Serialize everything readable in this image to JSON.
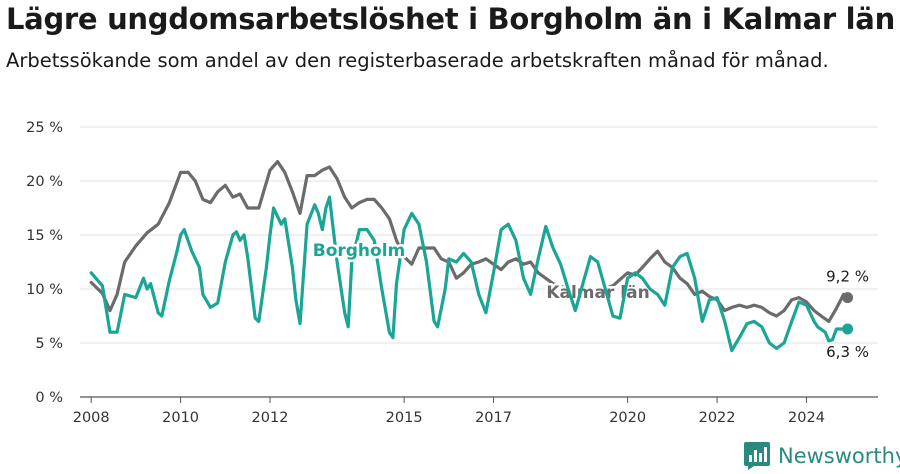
{
  "title": "Lägre ungdomsarbetslöshet i Borgholm än i Kalmar län",
  "subtitle": "Arbetssökande som andel av den registerbaserade arbetskraften månad för månad.",
  "brand": {
    "name": "Newsworthy",
    "logo_icon": "bar-chart-icon",
    "color": "#2a8a80"
  },
  "chart_data": {
    "type": "line",
    "title": "Lägre ungdomsarbetslöshet i Borgholm än i Kalmar län",
    "ylabel": "",
    "xlabel": "",
    "ylim": [
      0,
      25
    ],
    "xlim": [
      2007.75,
      2025.6
    ],
    "y_ticks": [
      0,
      5,
      10,
      15,
      20,
      25
    ],
    "y_tick_labels": [
      "0 %",
      "5 %",
      "10 %",
      "15 %",
      "20 %",
      "25 %"
    ],
    "x_ticks": [
      2008,
      2010,
      2012,
      2015,
      2017,
      2020,
      2022,
      2024
    ],
    "x_tick_labels": [
      "2008",
      "2010",
      "2012",
      "2015",
      "2017",
      "2020",
      "2022",
      "2024"
    ],
    "grid": true,
    "legend": "inline labels",
    "series": [
      {
        "name": "Kalmar län",
        "color": "#6b6b6b",
        "end_label": "9,2 %",
        "end_value": 9.2,
        "points": [
          [
            2008.0,
            10.6
          ],
          [
            2008.25,
            9.6
          ],
          [
            2008.42,
            8.0
          ],
          [
            2008.58,
            9.5
          ],
          [
            2008.75,
            12.5
          ],
          [
            2009.0,
            14.0
          ],
          [
            2009.25,
            15.2
          ],
          [
            2009.5,
            16.0
          ],
          [
            2009.75,
            18.0
          ],
          [
            2010.0,
            20.8
          ],
          [
            2010.17,
            20.8
          ],
          [
            2010.33,
            20.0
          ],
          [
            2010.5,
            18.3
          ],
          [
            2010.67,
            18.0
          ],
          [
            2010.83,
            19.0
          ],
          [
            2011.0,
            19.6
          ],
          [
            2011.17,
            18.5
          ],
          [
            2011.33,
            18.8
          ],
          [
            2011.5,
            17.5
          ],
          [
            2011.75,
            17.5
          ],
          [
            2012.0,
            21.0
          ],
          [
            2012.17,
            21.8
          ],
          [
            2012.33,
            20.8
          ],
          [
            2012.5,
            19.0
          ],
          [
            2012.67,
            17.0
          ],
          [
            2012.83,
            20.5
          ],
          [
            2013.0,
            20.5
          ],
          [
            2013.17,
            21.0
          ],
          [
            2013.33,
            21.3
          ],
          [
            2013.5,
            20.2
          ],
          [
            2013.67,
            18.5
          ],
          [
            2013.83,
            17.5
          ],
          [
            2014.0,
            18.0
          ],
          [
            2014.17,
            18.3
          ],
          [
            2014.33,
            18.3
          ],
          [
            2014.5,
            17.5
          ],
          [
            2014.67,
            16.5
          ],
          [
            2014.83,
            14.5
          ],
          [
            2015.0,
            13.0
          ],
          [
            2015.17,
            12.3
          ],
          [
            2015.33,
            13.8
          ],
          [
            2015.5,
            13.8
          ],
          [
            2015.67,
            13.8
          ],
          [
            2015.83,
            12.8
          ],
          [
            2016.0,
            12.5
          ],
          [
            2016.17,
            11.0
          ],
          [
            2016.33,
            11.5
          ],
          [
            2016.5,
            12.3
          ],
          [
            2016.67,
            12.5
          ],
          [
            2016.83,
            12.8
          ],
          [
            2017.0,
            12.3
          ],
          [
            2017.17,
            11.8
          ],
          [
            2017.33,
            12.5
          ],
          [
            2017.5,
            12.8
          ],
          [
            2017.67,
            12.3
          ],
          [
            2017.83,
            12.5
          ],
          [
            2018.0,
            11.5
          ],
          [
            2018.33,
            10.5
          ],
          [
            2018.67,
            10.0
          ],
          [
            2019.0,
            9.5
          ],
          [
            2019.33,
            9.8
          ],
          [
            2019.67,
            10.3
          ],
          [
            2020.0,
            11.5
          ],
          [
            2020.17,
            11.3
          ],
          [
            2020.33,
            12.0
          ],
          [
            2020.5,
            12.8
          ],
          [
            2020.67,
            13.5
          ],
          [
            2020.83,
            12.5
          ],
          [
            2021.0,
            12.0
          ],
          [
            2021.17,
            11.0
          ],
          [
            2021.33,
            10.5
          ],
          [
            2021.5,
            9.5
          ],
          [
            2021.67,
            9.8
          ],
          [
            2021.83,
            9.3
          ],
          [
            2022.0,
            9.0
          ],
          [
            2022.17,
            8.0
          ],
          [
            2022.33,
            8.3
          ],
          [
            2022.5,
            8.5
          ],
          [
            2022.67,
            8.3
          ],
          [
            2022.83,
            8.5
          ],
          [
            2023.0,
            8.3
          ],
          [
            2023.17,
            7.8
          ],
          [
            2023.33,
            7.5
          ],
          [
            2023.5,
            8.0
          ],
          [
            2023.67,
            9.0
          ],
          [
            2023.83,
            9.2
          ],
          [
            2024.0,
            8.8
          ],
          [
            2024.17,
            8.0
          ],
          [
            2024.33,
            7.5
          ],
          [
            2024.5,
            7.0
          ],
          [
            2024.67,
            8.2
          ],
          [
            2024.83,
            9.5
          ],
          [
            2024.92,
            9.2
          ]
        ]
      },
      {
        "name": "Borgholm",
        "color": "#1aa595",
        "end_label": "6,3 %",
        "end_value": 6.3,
        "points": [
          [
            2008.0,
            11.5
          ],
          [
            2008.25,
            10.3
          ],
          [
            2008.42,
            6.0
          ],
          [
            2008.58,
            6.0
          ],
          [
            2008.75,
            9.5
          ],
          [
            2008.92,
            9.3
          ],
          [
            2009.0,
            9.2
          ],
          [
            2009.17,
            11.0
          ],
          [
            2009.25,
            10.0
          ],
          [
            2009.33,
            10.5
          ],
          [
            2009.5,
            7.8
          ],
          [
            2009.58,
            7.5
          ],
          [
            2009.75,
            10.8
          ],
          [
            2009.92,
            13.5
          ],
          [
            2010.0,
            15.0
          ],
          [
            2010.08,
            15.5
          ],
          [
            2010.25,
            13.5
          ],
          [
            2010.42,
            12.0
          ],
          [
            2010.5,
            9.5
          ],
          [
            2010.67,
            8.3
          ],
          [
            2010.83,
            8.7
          ],
          [
            2011.0,
            12.5
          ],
          [
            2011.17,
            15.0
          ],
          [
            2011.25,
            15.3
          ],
          [
            2011.33,
            14.5
          ],
          [
            2011.42,
            15.0
          ],
          [
            2011.5,
            13.0
          ],
          [
            2011.67,
            7.3
          ],
          [
            2011.75,
            7.0
          ],
          [
            2011.92,
            12.0
          ],
          [
            2012.0,
            15.0
          ],
          [
            2012.08,
            17.5
          ],
          [
            2012.25,
            16.0
          ],
          [
            2012.33,
            16.5
          ],
          [
            2012.5,
            12.0
          ],
          [
            2012.58,
            9.0
          ],
          [
            2012.67,
            6.8
          ],
          [
            2012.83,
            16.0
          ],
          [
            2013.0,
            17.8
          ],
          [
            2013.08,
            17.0
          ],
          [
            2013.17,
            15.5
          ],
          [
            2013.25,
            17.5
          ],
          [
            2013.33,
            18.5
          ],
          [
            2013.5,
            12.5
          ],
          [
            2013.67,
            7.8
          ],
          [
            2013.75,
            6.5
          ],
          [
            2013.83,
            12.5
          ],
          [
            2014.0,
            15.5
          ],
          [
            2014.17,
            15.5
          ],
          [
            2014.33,
            14.5
          ],
          [
            2014.5,
            10.0
          ],
          [
            2014.67,
            6.0
          ],
          [
            2014.75,
            5.5
          ],
          [
            2014.83,
            10.5
          ],
          [
            2015.0,
            15.5
          ],
          [
            2015.17,
            17.0
          ],
          [
            2015.33,
            16.0
          ],
          [
            2015.5,
            12.5
          ],
          [
            2015.67,
            7.0
          ],
          [
            2015.75,
            6.5
          ],
          [
            2015.92,
            10.0
          ],
          [
            2016.0,
            12.8
          ],
          [
            2016.17,
            12.5
          ],
          [
            2016.33,
            13.3
          ],
          [
            2016.5,
            12.5
          ],
          [
            2016.67,
            9.5
          ],
          [
            2016.83,
            7.8
          ],
          [
            2017.0,
            11.5
          ],
          [
            2017.17,
            15.5
          ],
          [
            2017.33,
            16.0
          ],
          [
            2017.5,
            14.5
          ],
          [
            2017.67,
            11.0
          ],
          [
            2017.83,
            9.5
          ],
          [
            2018.0,
            12.8
          ],
          [
            2018.17,
            15.8
          ],
          [
            2018.33,
            13.8
          ],
          [
            2018.5,
            12.3
          ],
          [
            2018.67,
            10.0
          ],
          [
            2018.83,
            8.0
          ],
          [
            2019.0,
            10.5
          ],
          [
            2019.17,
            13.0
          ],
          [
            2019.33,
            12.5
          ],
          [
            2019.5,
            10.0
          ],
          [
            2019.67,
            7.5
          ],
          [
            2019.83,
            7.3
          ],
          [
            2020.0,
            11.0
          ],
          [
            2020.17,
            11.5
          ],
          [
            2020.33,
            11.0
          ],
          [
            2020.5,
            10.0
          ],
          [
            2020.67,
            9.5
          ],
          [
            2020.83,
            8.5
          ],
          [
            2021.0,
            12.0
          ],
          [
            2021.17,
            13.0
          ],
          [
            2021.33,
            13.3
          ],
          [
            2021.5,
            11.0
          ],
          [
            2021.67,
            7.0
          ],
          [
            2021.83,
            9.0
          ],
          [
            2022.0,
            9.2
          ],
          [
            2022.17,
            7.0
          ],
          [
            2022.33,
            4.3
          ],
          [
            2022.5,
            5.5
          ],
          [
            2022.67,
            6.8
          ],
          [
            2022.83,
            7.0
          ],
          [
            2023.0,
            6.5
          ],
          [
            2023.17,
            5.0
          ],
          [
            2023.33,
            4.5
          ],
          [
            2023.5,
            5.0
          ],
          [
            2023.67,
            7.0
          ],
          [
            2023.83,
            8.8
          ],
          [
            2024.0,
            8.5
          ],
          [
            2024.17,
            7.0
          ],
          [
            2024.25,
            6.5
          ],
          [
            2024.42,
            6.0
          ],
          [
            2024.5,
            5.2
          ],
          [
            2024.58,
            5.3
          ],
          [
            2024.67,
            6.3
          ],
          [
            2024.83,
            6.3
          ],
          [
            2024.92,
            6.3
          ]
        ]
      }
    ]
  }
}
